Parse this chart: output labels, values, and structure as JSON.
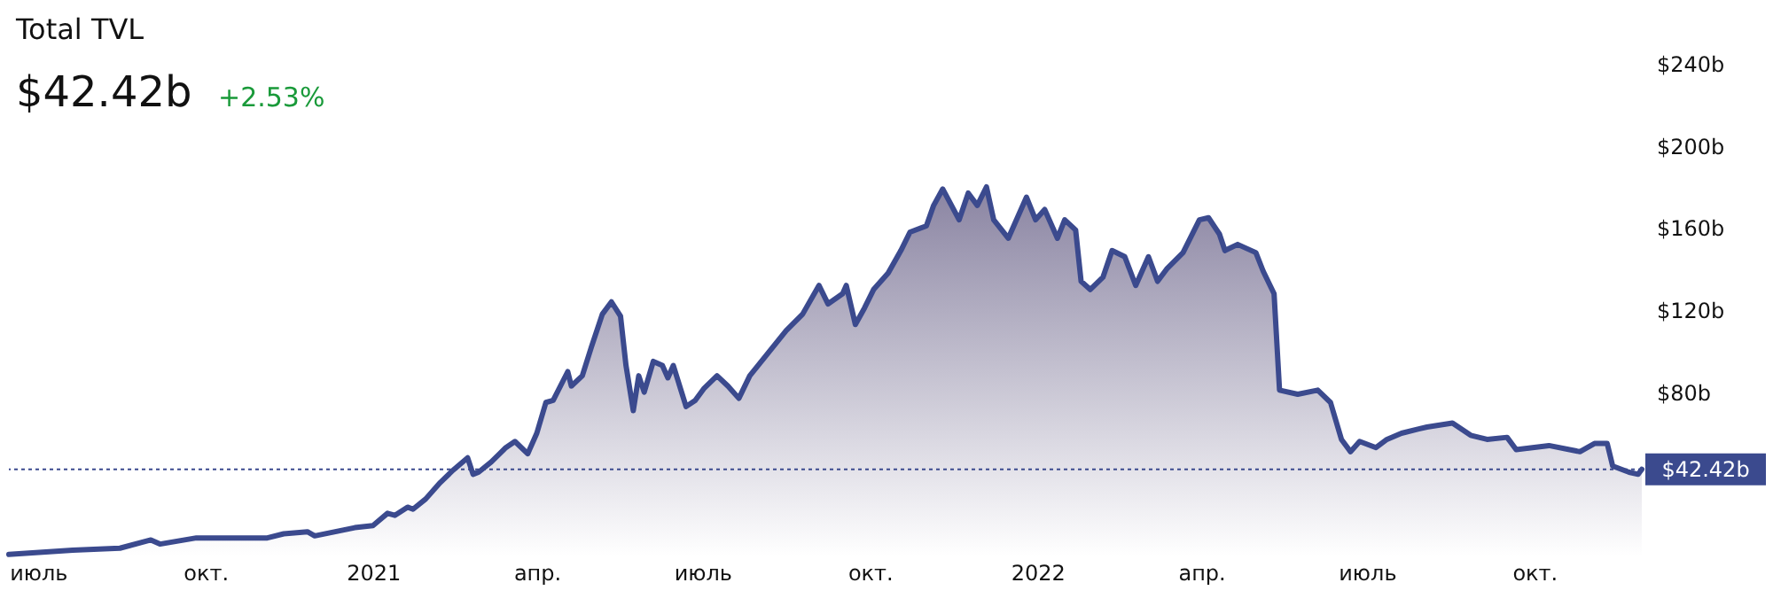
{
  "chart_data": {
    "type": "area",
    "title": "Total TVL",
    "subtitle": "$42.42b",
    "annotations": [
      "+2.53%"
    ],
    "x": [
      "2020-06-15",
      "2020-07-20",
      "2020-08-15",
      "2020-09-01",
      "2020-09-06",
      "2020-09-26",
      "2020-11-04",
      "2020-11-13",
      "2020-11-26",
      "2020-11-30",
      "2020-12-22",
      "2021-01-01",
      "2021-01-09",
      "2021-01-13",
      "2021-01-20",
      "2021-01-23",
      "2021-01-30",
      "2021-02-07",
      "2021-02-14",
      "2021-02-22",
      "2021-02-25",
      "2021-02-28",
      "2021-03-07",
      "2021-03-15",
      "2021-03-20",
      "2021-03-27",
      "2021-04-01",
      "2021-04-06",
      "2021-04-10",
      "2021-04-18",
      "2021-04-20",
      "2021-04-26",
      "2021-05-01",
      "2021-05-07",
      "2021-05-12",
      "2021-05-17",
      "2021-05-20",
      "2021-05-24",
      "2021-05-27",
      "2021-05-30",
      "2021-06-04",
      "2021-06-09",
      "2021-06-12",
      "2021-06-15",
      "2021-06-22",
      "2021-06-27",
      "2021-07-02",
      "2021-07-09",
      "2021-07-15",
      "2021-07-21",
      "2021-07-27",
      "2021-08-06",
      "2021-08-16",
      "2021-08-25",
      "2021-09-03",
      "2021-09-08",
      "2021-09-16",
      "2021-09-18",
      "2021-09-23",
      "2021-09-28",
      "2021-10-03",
      "2021-10-11",
      "2021-10-18",
      "2021-10-23",
      "2021-11-01",
      "2021-11-05",
      "2021-11-10",
      "2021-11-19",
      "2021-11-24",
      "2021-11-29",
      "2021-12-04",
      "2021-12-08",
      "2021-12-16",
      "2021-12-26",
      "2021-12-31",
      "2022-01-05",
      "2022-01-12",
      "2022-01-16",
      "2022-01-22",
      "2022-01-25",
      "2022-01-30",
      "2022-02-06",
      "2022-02-11",
      "2022-02-18",
      "2022-02-24",
      "2022-03-03",
      "2022-03-08",
      "2022-03-13",
      "2022-03-22",
      "2022-03-31",
      "2022-04-05",
      "2022-04-11",
      "2022-04-14",
      "2022-04-21",
      "2022-05-01",
      "2022-05-05",
      "2022-05-11",
      "2022-05-14",
      "2022-05-24",
      "2022-06-04",
      "2022-06-11",
      "2022-06-17",
      "2022-06-22",
      "2022-06-27",
      "2022-07-06",
      "2022-07-12",
      "2022-07-20",
      "2022-07-29",
      "2022-08-03",
      "2022-08-17",
      "2022-08-27",
      "2022-09-05",
      "2022-09-16",
      "2022-09-21",
      "2022-10-09",
      "2022-10-26",
      "2022-11-03",
      "2022-11-10",
      "2022-11-13",
      "2022-11-22",
      "2022-11-27",
      "2022-11-29"
    ],
    "series": [
      {
        "color": "#3b4a8e",
        "values": [
          1,
          3,
          4,
          8,
          6,
          9,
          9,
          11,
          12,
          10,
          14,
          15,
          21,
          20,
          24,
          23,
          28,
          36,
          42,
          48,
          40,
          41,
          46,
          53,
          56,
          50,
          60,
          75,
          76,
          90,
          83,
          88,
          102,
          118,
          124,
          117,
          93,
          71,
          88,
          80,
          95,
          93,
          87,
          93,
          73,
          76,
          82,
          88,
          83,
          77,
          88,
          99,
          110,
          118,
          132,
          123,
          128,
          132,
          113,
          121,
          130,
          138,
          149,
          158,
          161,
          171,
          179,
          164,
          177,
          171,
          180,
          164,
          155,
          175,
          164,
          169,
          155,
          164,
          159,
          134,
          130,
          136,
          149,
          146,
          132,
          146,
          134,
          140,
          148,
          164,
          165,
          157,
          149,
          152,
          148,
          139,
          128,
          81,
          79,
          81,
          75,
          57,
          51,
          56,
          53,
          57,
          60,
          62,
          63,
          65,
          59,
          57,
          58,
          52,
          54,
          51,
          55,
          55,
          44,
          41,
          40,
          42.42
        ]
      }
    ],
    "xlim": [
      "2020-06-15",
      "2022-11-29"
    ],
    "xticks": [
      {
        "value": "2020-07-01",
        "label": "июль"
      },
      {
        "value": "2020-10-01",
        "label": "окт."
      },
      {
        "value": "2021-01-01",
        "label": "2021"
      },
      {
        "value": "2021-04-01",
        "label": "апр."
      },
      {
        "value": "2021-07-01",
        "label": "июль"
      },
      {
        "value": "2021-10-01",
        "label": "окт."
      },
      {
        "value": "2022-01-01",
        "label": "2022"
      },
      {
        "value": "2022-04-01",
        "label": "апр."
      },
      {
        "value": "2022-07-01",
        "label": "июль"
      },
      {
        "value": "2022-10-01",
        "label": "окт."
      }
    ],
    "ylim": [
      0,
      240
    ],
    "yticks": [
      {
        "value": 80,
        "label": "$80b"
      },
      {
        "value": 120,
        "label": "$120b"
      },
      {
        "value": 160,
        "label": "$160b"
      },
      {
        "value": 200,
        "label": "$200b"
      },
      {
        "value": 240,
        "label": "$240b"
      }
    ],
    "ref_lines": [
      {
        "axis": "y",
        "value": 42.42,
        "label": "$42.42b",
        "color": "#3b4a8e",
        "line_style": "dotted"
      }
    ],
    "grid": false,
    "marker": "none",
    "line_style": "solid"
  }
}
